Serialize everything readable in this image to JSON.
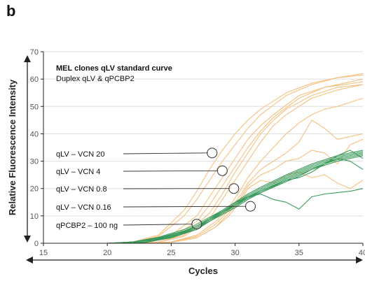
{
  "panel_label": "b",
  "chart_data": {
    "type": "line",
    "title": "MEL clones qLV standard curve",
    "subtitle": "Duplex qLV & qPCBP2",
    "xlabel": "Cycles",
    "ylabel": "Relative Fluorescence Intensity",
    "xlim": [
      15,
      40
    ],
    "ylim": [
      0,
      70
    ],
    "xticks": [
      15,
      20,
      25,
      30,
      35,
      40
    ],
    "yticks": [
      0,
      10,
      20,
      30,
      40,
      50,
      60,
      70
    ],
    "grid": "horizontal",
    "colors": {
      "qLV": "#f5c080",
      "qPCBP2": "#3a9a5c",
      "axis": "#222222",
      "grid": "#dddddd",
      "pointer": "#333333"
    },
    "series": [
      {
        "group": "qLV",
        "x": [
          15,
          20,
          22,
          24,
          26,
          27,
          28,
          29,
          30,
          31,
          32,
          34,
          36,
          38,
          40
        ],
        "y": [
          0,
          0,
          0.5,
          3,
          12,
          19,
          27,
          34,
          40,
          45,
          49,
          55,
          58.5,
          60.5,
          61.5
        ]
      },
      {
        "group": "qLV",
        "x": [
          15,
          20,
          22,
          24,
          26,
          27,
          28,
          29,
          30,
          31,
          32,
          34,
          36,
          38,
          40
        ],
        "y": [
          0,
          0,
          0.4,
          2.5,
          10,
          16,
          23,
          30,
          36,
          42,
          47,
          54,
          58,
          60.5,
          62
        ]
      },
      {
        "group": "qLV",
        "x": [
          15,
          21,
          23,
          25,
          27,
          28,
          29,
          30,
          31,
          32,
          33,
          35,
          37,
          40
        ],
        "y": [
          0,
          0,
          0.5,
          3,
          10,
          17,
          24,
          31,
          38,
          43,
          47,
          54,
          57,
          59
        ]
      },
      {
        "group": "qLV",
        "x": [
          15,
          21,
          23,
          25,
          27,
          28,
          29,
          30,
          31,
          32,
          33,
          35,
          37,
          40
        ],
        "y": [
          0,
          0,
          0.4,
          2,
          8,
          14,
          21,
          28,
          35,
          41,
          46,
          53,
          57,
          60
        ]
      },
      {
        "group": "qLV",
        "x": [
          15,
          22,
          24,
          26,
          28,
          29,
          30,
          31,
          32,
          33,
          34,
          36,
          38,
          40
        ],
        "y": [
          0,
          0,
          0.5,
          3,
          11,
          18,
          26,
          33,
          40,
          45,
          49,
          54,
          57,
          58
        ]
      },
      {
        "group": "qLV",
        "x": [
          15,
          22,
          24,
          26,
          28,
          29,
          30,
          31,
          32,
          33,
          34,
          36,
          38,
          40
        ],
        "y": [
          0,
          0,
          0.4,
          2.5,
          9,
          16,
          23,
          30,
          37,
          43,
          47,
          53,
          56,
          58
        ]
      },
      {
        "group": "qLV",
        "x": [
          15,
          23,
          25,
          27,
          28.5,
          29.5,
          30.5,
          31,
          32,
          33,
          34,
          35,
          36,
          37,
          38,
          40
        ],
        "y": [
          0,
          0,
          0.5,
          3,
          8,
          13,
          20,
          24,
          30,
          35,
          40,
          44,
          47,
          49,
          50,
          53
        ]
      },
      {
        "group": "qLV",
        "x": [
          15,
          23,
          25,
          27,
          28.5,
          29.5,
          30.5,
          31,
          32,
          33,
          34,
          35,
          36,
          37,
          38,
          40
        ],
        "y": [
          0,
          0,
          0.4,
          2.5,
          7,
          12,
          18,
          22,
          27,
          30,
          33,
          37,
          45,
          42,
          38,
          40
        ]
      },
      {
        "group": "qLV",
        "x": [
          15,
          23,
          25,
          27,
          28.5,
          29.5,
          30.5,
          31,
          32,
          33,
          34,
          35,
          36,
          37,
          38,
          39,
          40
        ],
        "y": [
          0,
          0,
          0.4,
          2,
          6,
          10,
          16,
          20,
          23,
          22,
          25,
          26,
          24,
          25,
          22,
          20,
          23
        ]
      },
      {
        "group": "qLV",
        "x": [
          15,
          23,
          25,
          27,
          28.5,
          29.5,
          30.5,
          31,
          32,
          33,
          34,
          35,
          36,
          37,
          38,
          39,
          40
        ],
        "y": [
          0,
          0,
          0.3,
          2,
          6,
          11,
          17,
          21,
          25,
          27,
          30,
          31,
          34,
          33,
          29,
          36,
          38
        ]
      },
      {
        "group": "qPCBP2",
        "x": [
          15,
          20,
          22,
          24,
          26,
          27,
          28,
          29,
          30,
          31,
          32,
          34,
          36,
          38,
          40
        ],
        "y": [
          0,
          0,
          0.5,
          2,
          4.5,
          6.5,
          9,
          11.5,
          14,
          17,
          19.5,
          24,
          28,
          31,
          33
        ]
      },
      {
        "group": "qPCBP2",
        "x": [
          15,
          20,
          22,
          24,
          26,
          27,
          28,
          29,
          30,
          31,
          32,
          34,
          36,
          38,
          40
        ],
        "y": [
          0,
          0,
          0.4,
          1.6,
          4,
          6,
          8.5,
          11,
          13.5,
          16.5,
          19,
          23.5,
          27.5,
          30.5,
          32.5
        ]
      },
      {
        "group": "qPCBP2",
        "x": [
          15,
          20,
          22,
          24,
          26,
          27,
          28,
          29,
          30,
          31,
          32,
          34,
          36,
          38,
          40
        ],
        "y": [
          0,
          0,
          0.3,
          1.4,
          3.6,
          5.5,
          8,
          10.5,
          13,
          16,
          18.5,
          23,
          27,
          30,
          32
        ]
      },
      {
        "group": "qPCBP2",
        "x": [
          15,
          20,
          22,
          24,
          26,
          27,
          28,
          29,
          30,
          31,
          32,
          34,
          36,
          38,
          40
        ],
        "y": [
          0,
          0,
          0.5,
          2.2,
          5,
          7,
          9.5,
          12,
          15,
          18,
          20.5,
          25,
          29,
          32,
          34
        ]
      },
      {
        "group": "qPCBP2",
        "x": [
          15,
          20,
          22,
          24,
          26,
          27,
          28,
          29,
          30,
          31,
          32,
          34,
          36,
          38,
          40
        ],
        "y": [
          0,
          0,
          0.4,
          1.8,
          4.4,
          6.4,
          9,
          11.5,
          14.5,
          17.5,
          20,
          24.5,
          28.5,
          31.5,
          33.5
        ]
      },
      {
        "group": "qPCBP2",
        "x": [
          15,
          21,
          23,
          25,
          27,
          28,
          29,
          30,
          31,
          32,
          33,
          34,
          35,
          36,
          37,
          38,
          39,
          40
        ],
        "y": [
          0,
          0,
          0.5,
          2.5,
          6,
          9,
          12,
          15,
          17,
          18,
          16,
          15,
          12.5,
          17,
          18,
          18.5,
          19,
          20
        ]
      },
      {
        "group": "qPCBP2",
        "x": [
          15,
          21,
          23,
          25,
          27,
          28,
          29,
          30,
          31,
          32,
          33,
          34,
          35,
          36,
          37,
          38,
          39,
          40
        ],
        "y": [
          0,
          0,
          0.4,
          2.2,
          5.5,
          8.5,
          11.5,
          14.5,
          17,
          19,
          21,
          23,
          24,
          26,
          29,
          31,
          30,
          27
        ]
      },
      {
        "group": "qPCBP2",
        "x": [
          15,
          21,
          23,
          25,
          27,
          28,
          29,
          30,
          31,
          32,
          33,
          34,
          35,
          36,
          37,
          38,
          39,
          40
        ],
        "y": [
          0,
          0,
          0.3,
          2,
          5,
          8,
          11,
          14,
          16.5,
          18.5,
          20.5,
          22.5,
          24.5,
          27,
          29,
          32,
          34,
          31
        ]
      }
    ],
    "annotations": [
      {
        "label": "qLV – VCN 20",
        "point": [
          28.2,
          33
        ]
      },
      {
        "label": "qLV – VCN 4",
        "point": [
          29,
          26.5
        ]
      },
      {
        "label": "qLV – VCN 0.8",
        "point": [
          29.9,
          20
        ]
      },
      {
        "label": "qLV – VCN 0.16",
        "point": [
          31.2,
          13.5
        ]
      },
      {
        "label": "qPCBP2 – 100 ng",
        "point": [
          27,
          7
        ]
      }
    ]
  }
}
